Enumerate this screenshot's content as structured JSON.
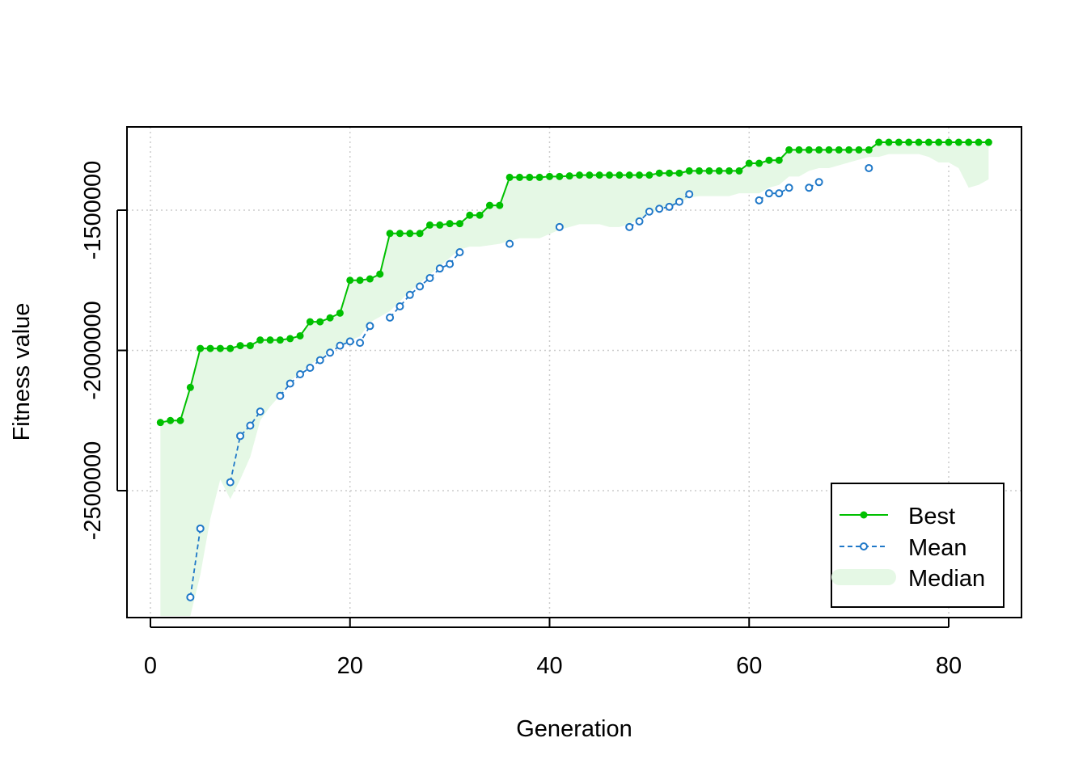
{
  "chart_data": {
    "type": "line",
    "xlabel": "Generation",
    "ylabel": "Fitness value",
    "xlim": [
      0,
      84
    ],
    "ylim": [
      -2950000,
      -1250000
    ],
    "x_ticks": [
      0,
      20,
      40,
      60,
      80
    ],
    "x_tick_labels": [
      "0",
      "20",
      "40",
      "60",
      "80"
    ],
    "y_ticks": [
      -2500000,
      -2000000,
      -1500000
    ],
    "y_tick_labels": [
      "-2500000",
      "-2000000",
      "-1500000"
    ],
    "grid": true,
    "legend_position": "bottom-right",
    "colors": {
      "best": "#00c000",
      "mean": "#1f78c8",
      "median": "#e5f8e5"
    },
    "x": [
      1,
      2,
      3,
      4,
      5,
      6,
      7,
      8,
      9,
      10,
      11,
      12,
      13,
      14,
      15,
      16,
      17,
      18,
      19,
      20,
      21,
      22,
      23,
      24,
      25,
      26,
      27,
      28,
      29,
      30,
      31,
      32,
      33,
      34,
      35,
      36,
      37,
      38,
      39,
      40,
      41,
      42,
      43,
      44,
      45,
      46,
      47,
      48,
      49,
      50,
      51,
      52,
      53,
      54,
      55,
      56,
      57,
      58,
      59,
      60,
      61,
      62,
      63,
      64,
      65,
      66,
      67,
      68,
      69,
      70,
      71,
      72,
      73,
      74,
      75,
      76,
      77,
      78,
      79,
      80,
      81,
      82,
      83,
      84
    ],
    "series": [
      {
        "name": "Best",
        "values": [
          -2257000,
          -2250000,
          -2250000,
          -2132000,
          -1993000,
          -1993000,
          -1993000,
          -1993000,
          -1983000,
          -1983000,
          -1963000,
          -1963000,
          -1963000,
          -1958000,
          -1948000,
          -1898000,
          -1898000,
          -1884000,
          -1867000,
          -1750000,
          -1750000,
          -1745000,
          -1728000,
          -1583000,
          -1583000,
          -1583000,
          -1583000,
          -1553000,
          -1553000,
          -1548000,
          -1548000,
          -1518000,
          -1518000,
          -1483000,
          -1483000,
          -1383000,
          -1383000,
          -1383000,
          -1383000,
          -1380000,
          -1380000,
          -1378000,
          -1375000,
          -1375000,
          -1375000,
          -1375000,
          -1375000,
          -1375000,
          -1375000,
          -1375000,
          -1368000,
          -1368000,
          -1368000,
          -1360000,
          -1360000,
          -1360000,
          -1360000,
          -1360000,
          -1360000,
          -1333000,
          -1333000,
          -1322000,
          -1322000,
          -1285000,
          -1285000,
          -1285000,
          -1285000,
          -1285000,
          -1285000,
          -1285000,
          -1285000,
          -1285000,
          -1258000,
          -1258000,
          -1258000,
          -1258000,
          -1258000,
          -1258000,
          -1258000,
          -1258000,
          -1258000,
          -1258000,
          -1258000,
          -1258000
        ]
      },
      {
        "name": "Mean",
        "values": [
          null,
          null,
          null,
          -2880000,
          -2635000,
          null,
          null,
          -2470000,
          -2305000,
          -2268000,
          -2218000,
          null,
          -2162000,
          -2118000,
          -2085000,
          -2062000,
          -2035000,
          -2008000,
          -1983000,
          -1968000,
          -1973000,
          -1913000,
          null,
          -1883000,
          -1843000,
          -1802000,
          -1772000,
          -1742000,
          -1708000,
          -1692000,
          -1650000,
          null,
          null,
          null,
          null,
          -1620000,
          null,
          null,
          null,
          null,
          -1560000,
          null,
          null,
          null,
          null,
          null,
          null,
          -1560000,
          -1540000,
          -1505000,
          -1495000,
          -1488000,
          -1470000,
          -1443000,
          null,
          null,
          null,
          null,
          null,
          null,
          -1465000,
          -1440000,
          -1440000,
          -1420000,
          null,
          -1420000,
          -1400000,
          null,
          null,
          null,
          null,
          -1350000,
          null,
          null,
          null,
          null,
          null,
          null,
          null,
          null,
          null,
          null,
          null,
          null
        ]
      },
      {
        "name": "Median",
        "upper": [
          -2257000,
          -2250000,
          -2250000,
          -2132000,
          -1993000,
          -1993000,
          -1993000,
          -1993000,
          -1983000,
          -1983000,
          -1963000,
          -1963000,
          -1963000,
          -1958000,
          -1948000,
          -1898000,
          -1898000,
          -1884000,
          -1867000,
          -1750000,
          -1750000,
          -1745000,
          -1728000,
          -1583000,
          -1583000,
          -1583000,
          -1583000,
          -1553000,
          -1553000,
          -1548000,
          -1548000,
          -1518000,
          -1518000,
          -1483000,
          -1483000,
          -1383000,
          -1383000,
          -1383000,
          -1383000,
          -1380000,
          -1380000,
          -1378000,
          -1375000,
          -1375000,
          -1375000,
          -1375000,
          -1375000,
          -1375000,
          -1375000,
          -1375000,
          -1368000,
          -1368000,
          -1368000,
          -1360000,
          -1360000,
          -1360000,
          -1360000,
          -1360000,
          -1360000,
          -1333000,
          -1333000,
          -1322000,
          -1322000,
          -1285000,
          -1285000,
          -1285000,
          -1285000,
          -1285000,
          -1285000,
          -1285000,
          -1285000,
          -1285000,
          -1258000,
          -1258000,
          -1258000,
          -1258000,
          -1258000,
          -1258000,
          -1258000,
          -1258000,
          -1258000,
          -1258000,
          -1258000,
          -1258000
        ],
        "lower": [
          -2950000,
          -2950000,
          -2950000,
          -2950000,
          -2800000,
          -2600000,
          -2460000,
          -2530000,
          -2460000,
          -2380000,
          -2250000,
          -2200000,
          -2160000,
          -2110000,
          -2080000,
          -2050000,
          -2030000,
          -2000000,
          -1980000,
          -1965000,
          -1950000,
          -1900000,
          -1880000,
          -1860000,
          -1825000,
          -1790000,
          -1760000,
          -1730000,
          -1700000,
          -1670000,
          -1640000,
          -1630000,
          -1630000,
          -1625000,
          -1620000,
          -1610000,
          -1600000,
          -1600000,
          -1600000,
          -1585000,
          -1570000,
          -1560000,
          -1550000,
          -1550000,
          -1550000,
          -1560000,
          -1560000,
          -1550000,
          -1530000,
          -1510000,
          -1500000,
          -1490000,
          -1475000,
          -1455000,
          -1450000,
          -1450000,
          -1450000,
          -1450000,
          -1440000,
          -1440000,
          -1440000,
          -1420000,
          -1410000,
          -1380000,
          -1380000,
          -1360000,
          -1350000,
          -1350000,
          -1340000,
          -1330000,
          -1320000,
          -1310000,
          -1310000,
          -1300000,
          -1300000,
          -1300000,
          -1300000,
          -1310000,
          -1330000,
          -1330000,
          -1350000,
          -1420000,
          -1410000,
          -1390000
        ]
      }
    ],
    "legend": [
      "Best",
      "Mean",
      "Median"
    ]
  }
}
